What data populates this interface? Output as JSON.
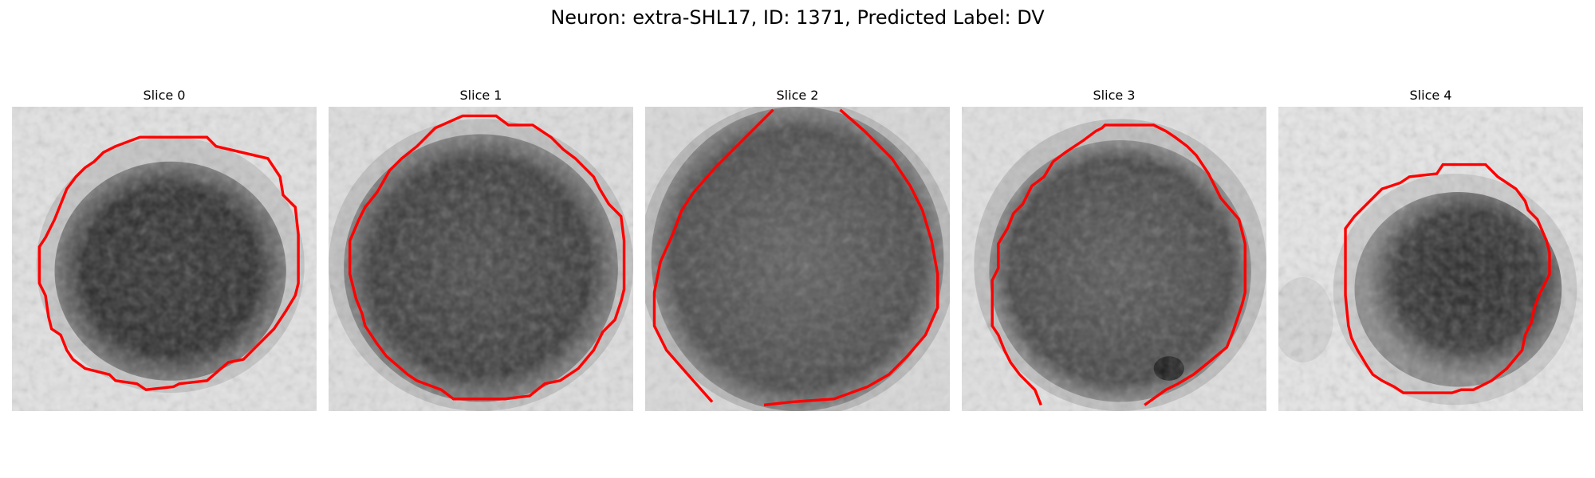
{
  "figure": {
    "title": "Neuron: extra-SHL17, ID: 1371, Predicted Label: DV"
  },
  "colors": {
    "contour": "#ff0000",
    "background_light": "#e6e6e6",
    "cell_dark": "#2e2e2e"
  },
  "panels": [
    {
      "title": "Slice 0"
    },
    {
      "title": "Slice 1"
    },
    {
      "title": "Slice 2"
    },
    {
      "title": "Slice 3"
    },
    {
      "title": "Slice 4"
    }
  ]
}
